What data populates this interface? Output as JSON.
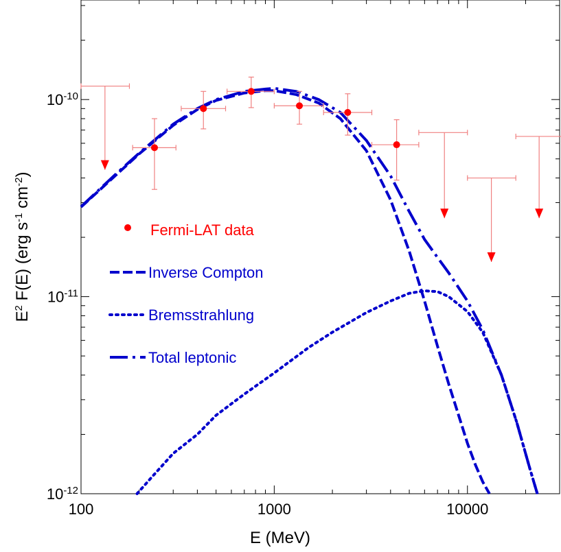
{
  "chart_data": {
    "type": "line",
    "xlabel": "E (MeV)",
    "ylabel_base": "E",
    "ylabel_sup": "2",
    "ylabel_mid": " F(E) (erg s",
    "ylabel_sup2": "-1",
    "ylabel_mid2": " cm",
    "ylabel_sup3": "-2",
    "ylabel_end": ")",
    "xscale": "log",
    "yscale": "log",
    "xlim": [
      100,
      30000
    ],
    "ylim": [
      1e-12,
      3.2e-10
    ],
    "x_ticks": [
      {
        "value": 100,
        "label": "100"
      },
      {
        "value": 1000,
        "label": "1000"
      },
      {
        "value": 10000,
        "label": "10000"
      }
    ],
    "y_ticks": [
      {
        "value": 1e-12,
        "base": "10",
        "exp": "-12"
      },
      {
        "value": 1e-11,
        "base": "10",
        "exp": "-11"
      },
      {
        "value": 1e-10,
        "base": "10",
        "exp": "-10"
      }
    ],
    "colors": {
      "data": "#ff0000",
      "errorbar": "#f08080",
      "model": "#0000cc"
    },
    "fermi_points": [
      {
        "x": 240,
        "y": 5.7e-11,
        "xlo": 185,
        "xhi": 310,
        "ylo": 3.5e-11,
        "yhi": 8e-11
      },
      {
        "x": 430,
        "y": 9e-11,
        "xlo": 330,
        "xhi": 560,
        "ylo": 7.1e-11,
        "yhi": 1.1e-10
      },
      {
        "x": 760,
        "y": 1.1e-10,
        "xlo": 570,
        "xhi": 1000,
        "ylo": 9.1e-11,
        "yhi": 1.3e-10
      },
      {
        "x": 1350,
        "y": 9.3e-11,
        "xlo": 1000,
        "xhi": 1800,
        "ylo": 7.5e-11,
        "yhi": 1.1e-10
      },
      {
        "x": 2400,
        "y": 8.6e-11,
        "xlo": 1800,
        "xhi": 3200,
        "ylo": 6.6e-11,
        "yhi": 1.07e-10
      },
      {
        "x": 4300,
        "y": 5.9e-11,
        "xlo": 3200,
        "xhi": 5600,
        "ylo": 3.9e-11,
        "yhi": 7.9e-11
      }
    ],
    "upper_limits": [
      {
        "x": 133,
        "y": 1.17e-10,
        "xlo": 100,
        "xhi": 178,
        "yarrow": 4.4e-11
      },
      {
        "x": 7600,
        "y": 6.8e-11,
        "xlo": 5600,
        "xhi": 10000,
        "yarrow": 2.5e-11
      },
      {
        "x": 13300,
        "y": 4e-11,
        "xlo": 10000,
        "xhi": 17800,
        "yarrow": 1.5e-11
      },
      {
        "x": 23500,
        "y": 6.5e-11,
        "xlo": 17800,
        "xhi": 31000,
        "yarrow": 2.5e-11
      }
    ],
    "series": [
      {
        "name": "Inverse Compton",
        "style": "dash",
        "x": [
          100,
          150,
          200,
          300,
          400,
          500,
          700,
          900,
          1000,
          1300,
          1700,
          2200,
          3000,
          4000,
          5000,
          6000,
          7000,
          8000,
          9000,
          10000,
          11000,
          12000,
          13000
        ],
        "y": [
          2.85e-11,
          4.1e-11,
          5.3e-11,
          7.4e-11,
          8.9e-11,
          9.9e-11,
          1.08e-10,
          1.11e-10,
          1.11e-10,
          1.06e-10,
          9.6e-11,
          8e-11,
          5.5e-11,
          3.1e-11,
          1.7e-11,
          9.5e-12,
          5.6e-12,
          3.6e-12,
          2.5e-12,
          1.8e-12,
          1.4e-12,
          1.15e-12,
          1e-12
        ]
      },
      {
        "name": "Bremsstrahlung",
        "style": "dot",
        "x": [
          195,
          230,
          300,
          400,
          500,
          700,
          1000,
          1500,
          2000,
          3000,
          4000,
          5000,
          6000,
          7000,
          8000,
          10000,
          12000,
          15000,
          18000,
          21000,
          23000
        ],
        "y": [
          1e-12,
          1.2e-12,
          1.6e-12,
          2e-12,
          2.5e-12,
          3.2e-12,
          4.1e-12,
          5.5e-12,
          6.6e-12,
          8.3e-12,
          9.5e-12,
          1.04e-11,
          1.07e-11,
          1.06e-11,
          1e-11,
          8.4e-12,
          6.6e-12,
          4e-12,
          2.3e-12,
          1.35e-12,
          1e-12
        ]
      },
      {
        "name": "Total leptonic",
        "style": "longdash",
        "x": [
          100,
          150,
          200,
          300,
          400,
          500,
          700,
          900,
          1000,
          1300,
          1700,
          2200,
          3000,
          4000,
          5000,
          6000,
          7000,
          8000,
          10000,
          12000,
          15000,
          18000,
          21000,
          23000
        ],
        "y": [
          2.86e-11,
          4.15e-11,
          5.35e-11,
          7.5e-11,
          9e-11,
          1e-10,
          1.1e-10,
          1.13e-10,
          1.14e-10,
          1.1e-10,
          1e-10,
          8.6e-11,
          6.2e-11,
          4.1e-11,
          2.7e-11,
          1.95e-11,
          1.58e-11,
          1.32e-11,
          9.5e-12,
          6.8e-12,
          4e-12,
          2.3e-12,
          1.35e-12,
          1e-12
        ]
      }
    ],
    "legend": {
      "placement": "center-left",
      "entries": [
        {
          "label": "Fermi-LAT data",
          "kind": "point"
        },
        {
          "label": "Inverse Compton",
          "kind": "dash"
        },
        {
          "label": "Bremsstrahlung",
          "kind": "dot"
        },
        {
          "label": "Total leptonic",
          "kind": "longdash"
        }
      ]
    }
  }
}
